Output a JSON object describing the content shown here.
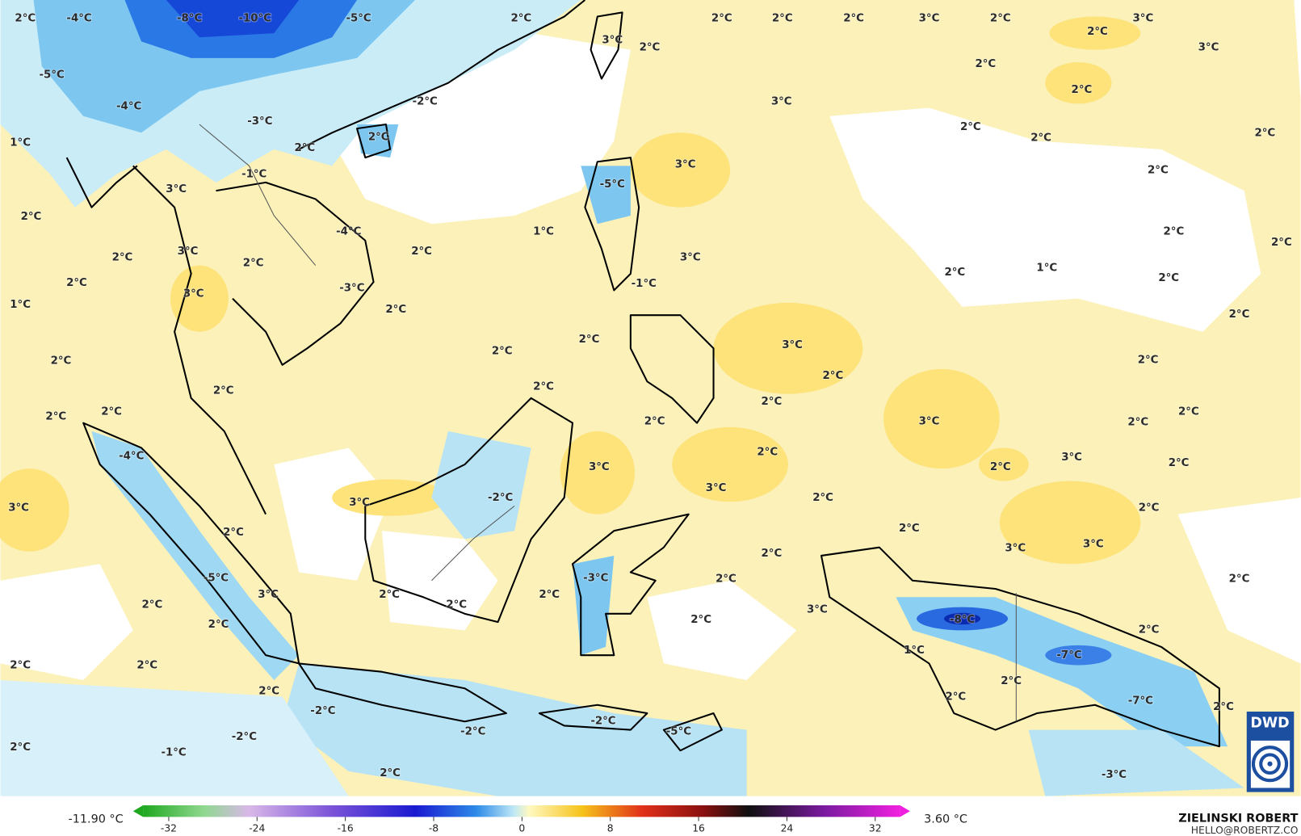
{
  "map": {
    "labels": [
      "-8°C",
      "-10°C",
      "-5°C",
      "-4°C",
      "2°C",
      "2°C",
      "2°C",
      "2°C",
      "2°C",
      "3°C",
      "2°C",
      "3°C",
      "2°C",
      "3°C",
      "3°C",
      "2°C",
      "-5°C",
      "-4°C",
      "-3°C",
      "2°C",
      "2°C",
      "3°C",
      "-2°C",
      "2°C",
      "2°C",
      "1°C",
      "2°C",
      "2°C",
      "2°C",
      "-1°C",
      "3°C",
      "-5°C",
      "3°C",
      "2°C",
      "2°C",
      "1°C",
      "-4°C",
      "2°C",
      "3°C",
      "2°C",
      "2°C",
      "3°C",
      "2°C",
      "2°C",
      "2°C",
      "1°C",
      "2°C",
      "-1°C",
      "-3°C",
      "2°C",
      "3°C",
      "1°C",
      "2°C",
      "2°C",
      "2°C",
      "3°C",
      "2°C",
      "2°C",
      "2°C",
      "2°C",
      "2°C",
      "2°C",
      "2°C",
      "2°C",
      "2°C",
      "2°C",
      "3°C",
      "2°C",
      "2°C",
      "-4°C",
      "2°C",
      "3°C",
      "3°C",
      "2°C",
      "2°C",
      "3°C",
      "3°C",
      "3°C",
      "-2°C",
      "2°C",
      "2°C",
      "2°C",
      "2°C",
      "3°C",
      "3°C",
      "2°C",
      "-5°C",
      "-3°C",
      "2°C",
      "2°C",
      "2°C",
      "3°C",
      "2°C",
      "2°C",
      "2°C",
      "2°C",
      "3°C",
      "-8°C",
      "2°C",
      "2°C",
      "1°C",
      "-7°C",
      "2°C",
      "2°C",
      "2°C",
      "2°C",
      "2°C",
      "-7°C",
      "-2°C",
      "-2°C",
      "2°C",
      "-2°C",
      "-2°C",
      "-5°C",
      "2°C",
      "-1°C",
      "2°C",
      "-3°C"
    ],
    "colorbar": {
      "min_label": "-11.90 °C",
      "max_label": "3.60 °C",
      "ticks": [
        -32,
        -24,
        -16,
        -8,
        0,
        8,
        16,
        24,
        32
      ]
    }
  },
  "credit": {
    "author": "ZIELINSKI ROBERT",
    "email": "HELLO@ROBERTZ.CO"
  },
  "logo": "DWD"
}
